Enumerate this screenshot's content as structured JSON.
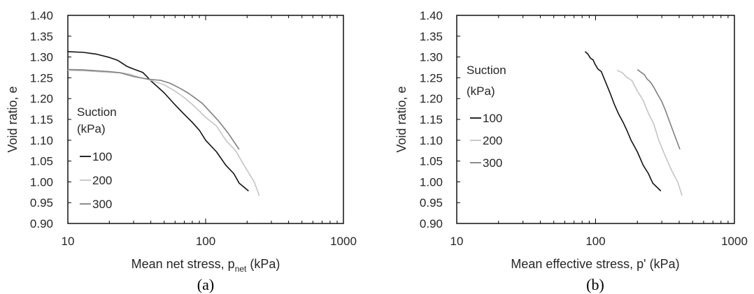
{
  "chart_data": [
    {
      "type": "line",
      "caption": "(a)",
      "xlabel": "Mean net stress, p",
      "xlabel_sub": "net",
      "xlabel_suffix": " (kPa)",
      "ylabel": "Void ratio, e",
      "xscale": "log",
      "xlim": [
        10,
        1000
      ],
      "ylim": [
        0.9,
        1.4
      ],
      "xticks": [
        "10",
        "100",
        "1000"
      ],
      "yticks": [
        "0.90",
        "0.95",
        "1.00",
        "1.05",
        "1.10",
        "1.15",
        "1.20",
        "1.25",
        "1.30",
        "1.35",
        "1.40"
      ],
      "grid": false,
      "legend": {
        "title": [
          "Suction",
          "(kPa)"
        ],
        "placement": "left-center"
      },
      "series": [
        {
          "name": "100",
          "color": "#111111",
          "points": [
            [
              10,
              1.313
            ],
            [
              13,
              1.311
            ],
            [
              16,
              1.307
            ],
            [
              20,
              1.299
            ],
            [
              23,
              1.292
            ],
            [
              27,
              1.277
            ],
            [
              30,
              1.271
            ],
            [
              35,
              1.263
            ],
            [
              40,
              1.243
            ],
            [
              50,
              1.214
            ],
            [
              60,
              1.185
            ],
            [
              70,
              1.162
            ],
            [
              80,
              1.143
            ],
            [
              90,
              1.124
            ],
            [
              100,
              1.1
            ],
            [
              120,
              1.072
            ],
            [
              140,
              1.04
            ],
            [
              160,
              1.02
            ],
            [
              175,
              0.997
            ],
            [
              205,
              0.978
            ]
          ]
        },
        {
          "name": "200",
          "color": "#c4c4c4",
          "points": [
            [
              10,
              1.268
            ],
            [
              13,
              1.267
            ],
            [
              16,
              1.265
            ],
            [
              20,
              1.263
            ],
            [
              24,
              1.262
            ],
            [
              28,
              1.259
            ],
            [
              33,
              1.251
            ],
            [
              40,
              1.244
            ],
            [
              50,
              1.233
            ],
            [
              60,
              1.218
            ],
            [
              70,
              1.202
            ],
            [
              80,
              1.186
            ],
            [
              90,
              1.17
            ],
            [
              100,
              1.155
            ],
            [
              120,
              1.134
            ],
            [
              140,
              1.1
            ],
            [
              165,
              1.075
            ],
            [
              190,
              1.04
            ],
            [
              225,
              1.0
            ],
            [
              245,
              0.967
            ]
          ]
        },
        {
          "name": "300",
          "color": "#7f7f7f",
          "points": [
            [
              10,
              1.27
            ],
            [
              13,
              1.269
            ],
            [
              16,
              1.267
            ],
            [
              20,
              1.265
            ],
            [
              24,
              1.262
            ],
            [
              30,
              1.253
            ],
            [
              35,
              1.249
            ],
            [
              40,
              1.246
            ],
            [
              47,
              1.244
            ],
            [
              55,
              1.237
            ],
            [
              65,
              1.225
            ],
            [
              75,
              1.213
            ],
            [
              85,
              1.2
            ],
            [
              95,
              1.188
            ],
            [
              110,
              1.165
            ],
            [
              125,
              1.145
            ],
            [
              145,
              1.118
            ],
            [
              175,
              1.078
            ]
          ]
        }
      ]
    },
    {
      "type": "line",
      "caption": "(b)",
      "xlabel": "Mean effective stress, p' (kPa)",
      "ylabel": "Void ratio, e",
      "xscale": "log",
      "xlim": [
        10,
        1000
      ],
      "ylim": [
        0.9,
        1.4
      ],
      "xticks": [
        "10",
        "100",
        "1000"
      ],
      "yticks": [
        "0.90",
        "0.95",
        "1.00",
        "1.05",
        "1.10",
        "1.15",
        "1.20",
        "1.25",
        "1.30",
        "1.35",
        "1.40"
      ],
      "grid": false,
      "legend": {
        "title": [
          "Suction",
          "(kPa)"
        ],
        "placement": "top-left"
      },
      "series": [
        {
          "name": "100",
          "color": "#111111",
          "points": [
            [
              84,
              1.313
            ],
            [
              88,
              1.307
            ],
            [
              92,
              1.297
            ],
            [
              96,
              1.293
            ],
            [
              99,
              1.283
            ],
            [
              104,
              1.271
            ],
            [
              110,
              1.265
            ],
            [
              117,
              1.243
            ],
            [
              127,
              1.214
            ],
            [
              137,
              1.185
            ],
            [
              147,
              1.162
            ],
            [
              158,
              1.143
            ],
            [
              168,
              1.124
            ],
            [
              180,
              1.1
            ],
            [
              200,
              1.072
            ],
            [
              220,
              1.04
            ],
            [
              240,
              1.02
            ],
            [
              258,
              0.997
            ],
            [
              295,
              0.978
            ]
          ]
        },
        {
          "name": "200",
          "color": "#c4c4c4",
          "points": [
            [
              143,
              1.268
            ],
            [
              156,
              1.262
            ],
            [
              168,
              1.251
            ],
            [
              182,
              1.244
            ],
            [
              200,
              1.218
            ],
            [
              220,
              1.196
            ],
            [
              240,
              1.165
            ],
            [
              262,
              1.14
            ],
            [
              285,
              1.1
            ],
            [
              315,
              1.065
            ],
            [
              350,
              1.03
            ],
            [
              390,
              1.0
            ],
            [
              420,
              0.967
            ]
          ]
        },
        {
          "name": "300",
          "color": "#7f7f7f",
          "points": [
            [
              200,
              1.27
            ],
            [
              213,
              1.263
            ],
            [
              224,
              1.258
            ],
            [
              235,
              1.247
            ],
            [
              248,
              1.24
            ],
            [
              262,
              1.228
            ],
            [
              280,
              1.21
            ],
            [
              300,
              1.193
            ],
            [
              320,
              1.17
            ],
            [
              345,
              1.14
            ],
            [
              375,
              1.108
            ],
            [
              405,
              1.078
            ]
          ]
        }
      ]
    }
  ]
}
